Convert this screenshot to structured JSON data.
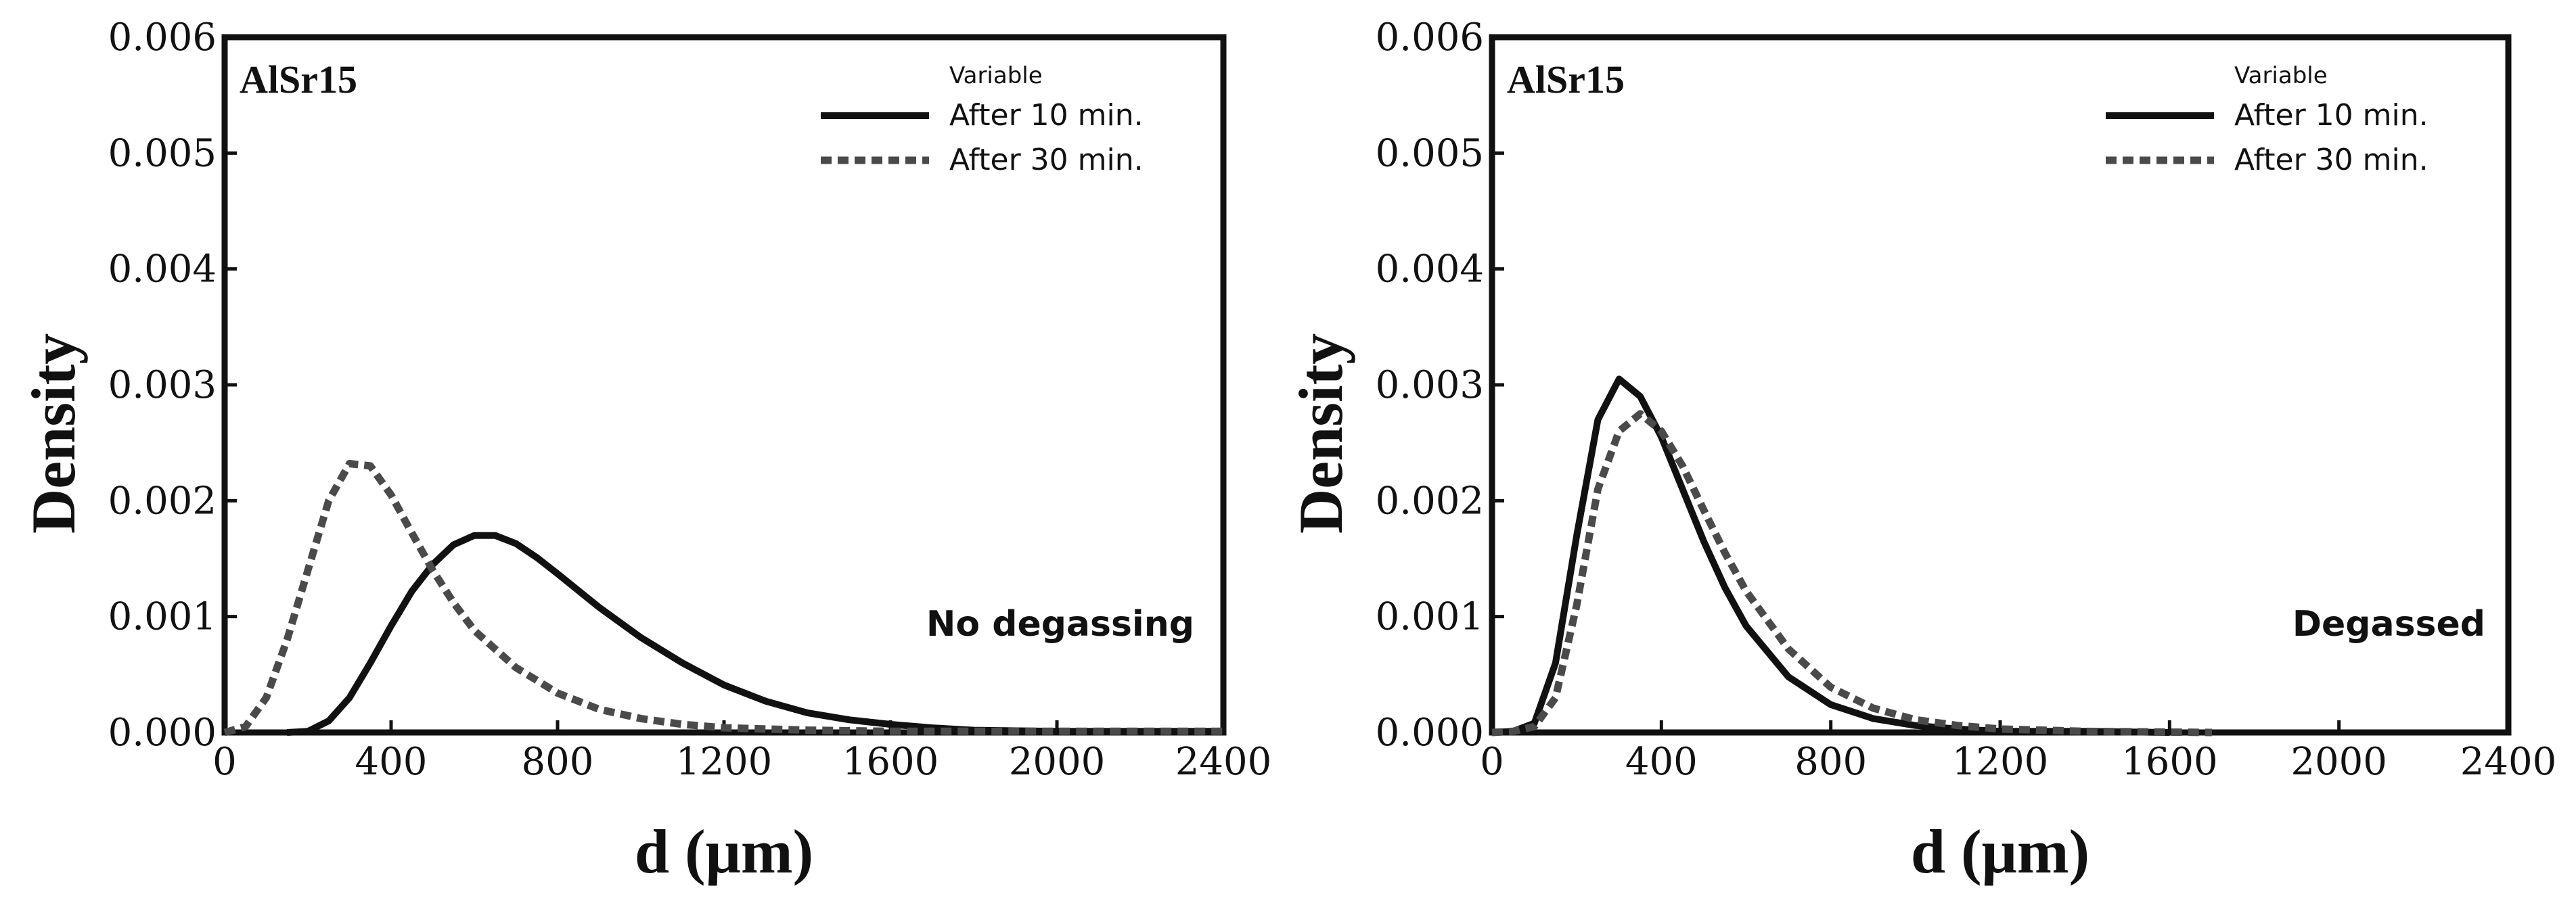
{
  "chart_data": [
    {
      "type": "line",
      "corner_label": "AlSr15",
      "annotation": "No degassing",
      "xlabel": "d (μm)",
      "ylabel": "Density",
      "xlim": [
        0,
        2400
      ],
      "ylim": [
        0,
        0.006
      ],
      "xticks": [
        "0",
        "400",
        "800",
        "1200",
        "1600",
        "2000",
        "2400"
      ],
      "yticks": [
        "0.000",
        "0.001",
        "0.002",
        "0.003",
        "0.004",
        "0.005",
        "0.006"
      ],
      "legend": {
        "title": "Variable",
        "position": "top-right"
      },
      "series": [
        {
          "name": "After 10 min.",
          "style": "solid",
          "color": "#111111",
          "points": [
            [
              150,
              0
            ],
            [
              200,
              1e-05
            ],
            [
              250,
              0.0001
            ],
            [
              300,
              0.0003
            ],
            [
              350,
              0.0006
            ],
            [
              400,
              0.00092
            ],
            [
              450,
              0.00122
            ],
            [
              500,
              0.00145
            ],
            [
              550,
              0.00162
            ],
            [
              600,
              0.0017
            ],
            [
              650,
              0.0017
            ],
            [
              700,
              0.00163
            ],
            [
              750,
              0.00151
            ],
            [
              800,
              0.00137
            ],
            [
              900,
              0.00108
            ],
            [
              1000,
              0.00082
            ],
            [
              1100,
              0.0006
            ],
            [
              1200,
              0.00041
            ],
            [
              1300,
              0.00027
            ],
            [
              1400,
              0.00017
            ],
            [
              1500,
              0.00011
            ],
            [
              1600,
              7e-05
            ],
            [
              1700,
              4e-05
            ],
            [
              1800,
              2e-05
            ],
            [
              2000,
              1e-05
            ],
            [
              2400,
              1e-05
            ]
          ]
        },
        {
          "name": "After 30 min.",
          "style": "dashed",
          "color": "#4a4a4a",
          "points": [
            [
              0,
              0
            ],
            [
              50,
              5e-05
            ],
            [
              100,
              0.0003
            ],
            [
              150,
              0.0008
            ],
            [
              200,
              0.0014
            ],
            [
              250,
              0.002
            ],
            [
              300,
              0.00232
            ],
            [
              350,
              0.0023
            ],
            [
              400,
              0.00205
            ],
            [
              450,
              0.00172
            ],
            [
              500,
              0.0014
            ],
            [
              550,
              0.00112
            ],
            [
              600,
              0.00088
            ],
            [
              700,
              0.00056
            ],
            [
              800,
              0.00034
            ],
            [
              900,
              0.0002
            ],
            [
              1000,
              0.00012
            ],
            [
              1100,
              7e-05
            ],
            [
              1200,
              4e-05
            ],
            [
              1400,
              2e-05
            ],
            [
              1600,
              1e-05
            ],
            [
              2000,
              1e-05
            ],
            [
              2400,
              1e-05
            ]
          ]
        }
      ]
    },
    {
      "type": "line",
      "corner_label": "AlSr15",
      "annotation": "Degassed",
      "xlabel": "d (μm)",
      "ylabel": "Density",
      "xlim": [
        0,
        2400
      ],
      "ylim": [
        0,
        0.006
      ],
      "xticks": [
        "0",
        "400",
        "800",
        "1200",
        "1600",
        "2000",
        "2400"
      ],
      "yticks": [
        "0.000",
        "0.001",
        "0.002",
        "0.003",
        "0.004",
        "0.005",
        "0.006"
      ],
      "legend": {
        "title": "Variable",
        "position": "top-right"
      },
      "series": [
        {
          "name": "After 10 min.",
          "style": "solid",
          "color": "#111111",
          "points": [
            [
              0,
              0
            ],
            [
              50,
              1e-05
            ],
            [
              100,
              8e-05
            ],
            [
              150,
              0.0006
            ],
            [
              200,
              0.0017
            ],
            [
              250,
              0.0027
            ],
            [
              300,
              0.00305
            ],
            [
              350,
              0.0029
            ],
            [
              400,
              0.00255
            ],
            [
              450,
              0.0021
            ],
            [
              500,
              0.00165
            ],
            [
              550,
              0.00125
            ],
            [
              600,
              0.00092
            ],
            [
              700,
              0.00048
            ],
            [
              800,
              0.00024
            ],
            [
              900,
              0.00012
            ],
            [
              1000,
              6e-05
            ],
            [
              1100,
              3e-05
            ],
            [
              1200,
              1e-05
            ],
            [
              1400,
              1e-05
            ],
            [
              1600,
              0
            ]
          ]
        },
        {
          "name": "After 30 min.",
          "style": "dashed",
          "color": "#4a4a4a",
          "points": [
            [
              0,
              0
            ],
            [
              50,
              1e-05
            ],
            [
              100,
              5e-05
            ],
            [
              150,
              0.0003
            ],
            [
              200,
              0.0011
            ],
            [
              250,
              0.0021
            ],
            [
              300,
              0.0026
            ],
            [
              350,
              0.00275
            ],
            [
              400,
              0.0026
            ],
            [
              450,
              0.0023
            ],
            [
              500,
              0.00192
            ],
            [
              550,
              0.00155
            ],
            [
              600,
              0.00122
            ],
            [
              700,
              0.00072
            ],
            [
              800,
              0.00039
            ],
            [
              900,
              0.00021
            ],
            [
              1000,
              0.00011
            ],
            [
              1100,
              6e-05
            ],
            [
              1200,
              3e-05
            ],
            [
              1400,
              1e-05
            ],
            [
              1700,
              0
            ]
          ]
        }
      ]
    }
  ]
}
